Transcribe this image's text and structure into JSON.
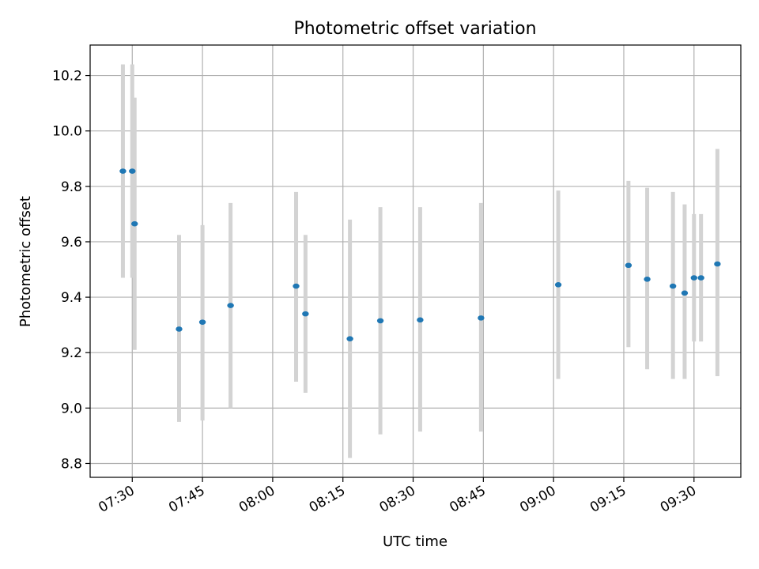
{
  "chart_data": {
    "type": "scatter",
    "title": "Photometric offset variation",
    "xlabel": "UTC time",
    "ylabel": "Photometric offset",
    "xlim": [
      "07:21",
      "09:40"
    ],
    "ylim": [
      8.75,
      10.31
    ],
    "grid": true,
    "x_ticks": [
      "07:30",
      "07:45",
      "08:00",
      "08:15",
      "08:30",
      "08:45",
      "09:00",
      "09:15",
      "09:30"
    ],
    "y_ticks": [
      8.8,
      9.0,
      9.2,
      9.4,
      9.6,
      9.8,
      10.0,
      10.2
    ],
    "y_tick_labels": [
      "8.8",
      "9.0",
      "9.2",
      "9.4",
      "9.6",
      "9.8",
      "10.0",
      "10.2"
    ],
    "series": [
      {
        "points": [
          {
            "x": "07:28",
            "y": 9.855,
            "yerr": [
              9.47,
              10.24
            ]
          },
          {
            "x": "07:30",
            "y": 9.855,
            "yerr": [
              9.47,
              10.24
            ]
          },
          {
            "x": "07:30.5",
            "y": 9.665,
            "yerr": [
              9.21,
              10.12
            ]
          },
          {
            "x": "07:40",
            "y": 9.285,
            "yerr": [
              8.95,
              9.625
            ]
          },
          {
            "x": "07:45",
            "y": 9.31,
            "yerr": [
              8.955,
              9.66
            ]
          },
          {
            "x": "07:51",
            "y": 9.37,
            "yerr": [
              9.0,
              9.74
            ]
          },
          {
            "x": "08:05",
            "y": 9.44,
            "yerr": [
              9.095,
              9.78
            ]
          },
          {
            "x": "08:07",
            "y": 9.34,
            "yerr": [
              9.055,
              9.625
            ]
          },
          {
            "x": "08:16.5",
            "y": 9.25,
            "yerr": [
              8.82,
              9.68
            ]
          },
          {
            "x": "08:23",
            "y": 9.315,
            "yerr": [
              8.905,
              9.725
            ]
          },
          {
            "x": "08:31.5",
            "y": 9.318,
            "yerr": [
              8.915,
              9.725
            ]
          },
          {
            "x": "08:44.5",
            "y": 9.325,
            "yerr": [
              8.915,
              9.74
            ]
          },
          {
            "x": "09:01",
            "y": 9.445,
            "yerr": [
              9.105,
              9.785
            ]
          },
          {
            "x": "09:16",
            "y": 9.515,
            "yerr": [
              9.22,
              9.82
            ]
          },
          {
            "x": "09:20",
            "y": 9.465,
            "yerr": [
              9.14,
              9.795
            ]
          },
          {
            "x": "09:25.5",
            "y": 9.44,
            "yerr": [
              9.105,
              9.78
            ]
          },
          {
            "x": "09:28",
            "y": 9.415,
            "yerr": [
              9.105,
              9.735
            ]
          },
          {
            "x": "09:30",
            "y": 9.47,
            "yerr": [
              9.24,
              9.7
            ]
          },
          {
            "x": "09:31.5",
            "y": 9.47,
            "yerr": [
              9.24,
              9.7
            ]
          },
          {
            "x": "09:35",
            "y": 9.52,
            "yerr": [
              9.115,
              9.935
            ]
          }
        ]
      }
    ],
    "colors": {
      "point": "#1f77b4",
      "errorbar": "#d3d3d3",
      "grid": "#b0b0b0",
      "axes": "#000000"
    }
  }
}
